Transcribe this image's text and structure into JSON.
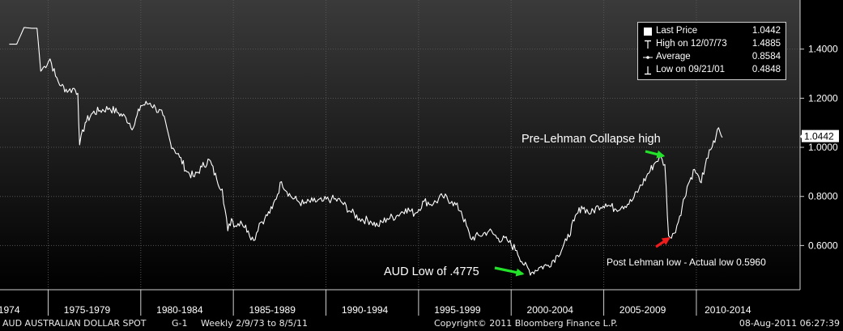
{
  "chart_data": {
    "type": "line",
    "series": [
      {
        "x": [
          1973.1,
          1973.5,
          1973.9,
          1974.3,
          1974.6,
          1974.8,
          1975.0,
          1975.3,
          1975.6,
          1975.9,
          1976.3,
          1976.6,
          1976.8,
          1976.9,
          1977.2,
          1977.6,
          1978.0,
          1978.5,
          1979.0,
          1979.4,
          1979.8,
          1980.2,
          1980.7,
          1981.0,
          1981.4,
          1981.8,
          1982.3,
          1982.7,
          1983.1,
          1983.5,
          1983.9,
          1984.3,
          1984.6,
          1984.9,
          1985.1,
          1985.3,
          1985.6,
          1986.0,
          1986.3,
          1986.6,
          1986.9,
          1987.3,
          1987.8,
          1988.3,
          1988.7,
          1989.0,
          1989.5,
          1990.0,
          1990.5,
          1991.0,
          1991.5,
          1992.0,
          1992.6,
          1993.0,
          1993.5,
          1994.0,
          1994.5,
          1995.0,
          1995.5,
          1996.0,
          1996.5,
          1997.0,
          1997.5,
          1998.0,
          1998.5,
          1999.0,
          1999.5,
          2000.0,
          2000.5,
          2000.9,
          2001.3,
          2001.7,
          2002.2,
          2002.7,
          2003.2,
          2003.6,
          2004.0,
          2004.5,
          2004.9,
          2005.3,
          2005.8,
          2006.2,
          2006.7,
          2007.1,
          2007.5,
          2007.9,
          2008.2,
          2008.5,
          2008.7,
          2008.85,
          2009.0,
          2009.3,
          2009.7,
          2010.1,
          2010.4,
          2010.6,
          2010.9,
          2011.2,
          2011.4,
          2011.6
        ],
        "y": [
          1.42,
          1.42,
          1.488,
          1.485,
          1.485,
          1.31,
          1.33,
          1.36,
          1.29,
          1.25,
          1.23,
          1.24,
          1.22,
          1.01,
          1.1,
          1.14,
          1.15,
          1.16,
          1.14,
          1.12,
          1.08,
          1.17,
          1.18,
          1.16,
          1.13,
          1.02,
          0.96,
          0.9,
          0.88,
          0.92,
          0.95,
          0.87,
          0.83,
          0.66,
          0.71,
          0.68,
          0.7,
          0.66,
          0.62,
          0.69,
          0.71,
          0.75,
          0.86,
          0.8,
          0.78,
          0.77,
          0.78,
          0.78,
          0.79,
          0.78,
          0.74,
          0.71,
          0.7,
          0.68,
          0.71,
          0.72,
          0.75,
          0.73,
          0.78,
          0.77,
          0.8,
          0.78,
          0.74,
          0.63,
          0.64,
          0.66,
          0.63,
          0.62,
          0.58,
          0.52,
          0.49,
          0.51,
          0.52,
          0.56,
          0.62,
          0.7,
          0.76,
          0.73,
          0.76,
          0.77,
          0.75,
          0.76,
          0.78,
          0.83,
          0.88,
          0.93,
          0.96,
          0.93,
          0.64,
          0.63,
          0.65,
          0.72,
          0.84,
          0.91,
          0.86,
          0.89,
          0.99,
          1.02,
          1.08,
          1.04
        ]
      }
    ],
    "ylim": [
      0.42,
      1.6
    ],
    "xlim": [
      1972.6,
      2015.8
    ],
    "y_ticks": [
      0.6,
      0.8,
      1.0,
      1.2,
      1.4
    ],
    "y_tick_labels": [
      "0.6000",
      "0.8000",
      "1.0000",
      "1.2000",
      "1.4000"
    ],
    "x_tick_labels": [
      {
        "label": "-1974",
        "center": 1973.0
      },
      {
        "label": "1975-1979",
        "center": 1977.3
      },
      {
        "label": "1980-1984",
        "center": 1982.3
      },
      {
        "label": "1985-1989",
        "center": 1987.3
      },
      {
        "label": "1990-1994",
        "center": 1992.3
      },
      {
        "label": "1995-1999",
        "center": 1997.3
      },
      {
        "label": "2000-2004",
        "center": 2002.3
      },
      {
        "label": "2005-2009",
        "center": 2007.3
      },
      {
        "label": "2010-2014",
        "center": 2011.9
      }
    ],
    "x_dividers": [
      1975.2,
      1980.2,
      1985.2,
      1990.2,
      1995.2,
      2000.2,
      2005.2,
      2010.2
    ],
    "grid": true,
    "last_price_tag": {
      "label": "1.0442",
      "value": 1.0442
    },
    "annotations": [
      {
        "text": "Pre-Lehman Collapse high",
        "color": "#ffffff",
        "arrow_color": "#22e22a",
        "point": [
          2008.6,
          0.965
        ]
      },
      {
        "text": "AUD Low of .4775",
        "color": "#ffffff",
        "arrow_color": "#22e22a",
        "point": [
          2001.0,
          0.485
        ]
      },
      {
        "text": "Post Lehman low -  Actual low 0.5960",
        "color": "#ffffff",
        "arrow_color": "#ee1c1c",
        "point": [
          2008.9,
          0.63
        ]
      }
    ],
    "legend": {
      "position": "top-right",
      "items": [
        {
          "symbol": "square",
          "label": "Last Price",
          "value": "1.0442"
        },
        {
          "symbol": "high",
          "label": "High on 12/07/73",
          "value": "1.4885"
        },
        {
          "symbol": "average",
          "label": "Average",
          "value": "0.8584"
        },
        {
          "symbol": "low",
          "label": "Low on 09/21/01",
          "value": "0.4848"
        }
      ]
    },
    "colors": {
      "background_top": "#3a3a3a",
      "background_bottom": "#000000",
      "line": "#ffffff",
      "grid": "#555555"
    }
  },
  "footer": {
    "ticker": "AUD  AUSTRALIAN DOLLAR SPOT",
    "chart_id": "G-1",
    "period": "Weekly  2/9/73 to 8/5/11",
    "copyright": "Copyright© 2011 Bloomberg Finance L.P.",
    "timestamp": "08-Aug-2011 06:27:39"
  }
}
